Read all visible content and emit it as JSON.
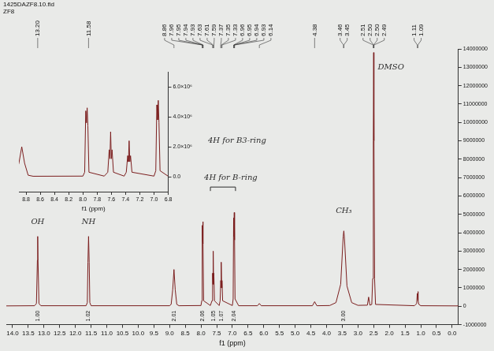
{
  "chart_data": [
    {
      "type": "line",
      "title": "1425DAZF8.10.fid",
      "subtitle": "ZF8",
      "x_label": "f1 (ppm)",
      "color": "#7b1e1e",
      "grid": false,
      "x": [
        14.2,
        13.3,
        13.24,
        13.21,
        13.2,
        13.19,
        13.16,
        13.1,
        11.66,
        11.62,
        11.6,
        11.58,
        11.56,
        11.54,
        11.5,
        9.0,
        8.95,
        8.9,
        8.86,
        8.82,
        8.77,
        8.7,
        8.0,
        7.975,
        7.96,
        7.95,
        7.94,
        7.93,
        7.915,
        7.7,
        7.65,
        7.63,
        7.62,
        7.61,
        7.6,
        7.59,
        7.57,
        7.42,
        7.39,
        7.37,
        7.36,
        7.35,
        7.34,
        7.33,
        7.31,
        7.0,
        6.975,
        6.96,
        6.95,
        6.94,
        6.93,
        6.915,
        6.8,
        6.2,
        6.14,
        6.08,
        4.45,
        4.38,
        4.31,
        3.9,
        3.7,
        3.55,
        3.47,
        3.45,
        3.43,
        3.35,
        3.2,
        3.0,
        2.7,
        2.66,
        2.62,
        2.56,
        2.53,
        2.51,
        2.5,
        2.49,
        2.47,
        2.44,
        1.2,
        1.13,
        1.11,
        1.1,
        1.09,
        1.08,
        1.06,
        1.0,
        -0.2
      ],
      "values": [
        20000,
        30000,
        150000,
        2500000,
        3800000,
        2500000,
        150000,
        30000,
        30000,
        200000,
        2400000,
        3800000,
        2400000,
        200000,
        30000,
        30000,
        100000,
        900000,
        2000000,
        900000,
        100000,
        30000,
        40000,
        300000,
        4400000,
        3600000,
        4600000,
        3400000,
        300000,
        40000,
        300000,
        1800000,
        1200000,
        3000000,
        1200000,
        1800000,
        300000,
        40000,
        300000,
        1400000,
        1000000,
        2400000,
        1000000,
        1400000,
        300000,
        40000,
        400000,
        4800000,
        3800000,
        5100000,
        3600000,
        400000,
        30000,
        30000,
        150000,
        30000,
        30000,
        250000,
        30000,
        40000,
        200000,
        1200000,
        3800000,
        4100000,
        3700000,
        1100000,
        200000,
        50000,
        60000,
        500000,
        60000,
        100000,
        1500000,
        9000000,
        13800000,
        9000000,
        1500000,
        100000,
        30000,
        150000,
        700000,
        400000,
        800000,
        300000,
        100000,
        30000,
        20000
      ],
      "xlim": [
        14.2,
        -0.2
      ],
      "xticks": [
        {
          "value": 14,
          "label": "14.0"
        },
        13.5,
        {
          "value": 13,
          "label": "13.0"
        },
        12.5,
        {
          "value": 12,
          "label": "12.0"
        },
        11.5,
        {
          "value": 11,
          "label": "11.0"
        },
        10.5,
        {
          "value": 10,
          "label": "10.0"
        },
        9.5,
        {
          "value": 9,
          "label": "9.0"
        },
        8.5,
        {
          "value": 8,
          "label": "8.0"
        },
        7.5,
        {
          "value": 7,
          "label": "7.0"
        },
        6.5,
        {
          "value": 6,
          "label": "6.0"
        },
        5.5,
        {
          "value": 5,
          "label": "5.0"
        },
        4.5,
        {
          "value": 4,
          "label": "4.0"
        },
        3.5,
        {
          "value": 3,
          "label": "3.0"
        },
        2.5,
        {
          "value": 2,
          "label": "2.0"
        },
        1.5,
        {
          "value": 1,
          "label": "1.0"
        },
        0.5,
        {
          "value": 0,
          "label": "0.0"
        }
      ],
      "ylim": [
        -1000000,
        14000000
      ],
      "yticks": [
        -1000000,
        0,
        1000000,
        2000000,
        3000000,
        4000000,
        5000000,
        6000000,
        7000000,
        8000000,
        9000000,
        10000000,
        11000000,
        12000000,
        13000000,
        14000000
      ],
      "peak_labels": [
        {
          "value": 13.2,
          "label": "13.20"
        },
        {
          "value": 11.58,
          "label": "11.58"
        },
        {
          "value": 8.86,
          "label": "8.86"
        },
        {
          "value": 7.96,
          "label": "7.96"
        },
        {
          "value": 7.95,
          "label": "7.95"
        },
        {
          "value": 7.94,
          "label": "7.94"
        },
        {
          "value": 7.93,
          "label": "7.93"
        },
        {
          "value": 7.63,
          "label": "7.63"
        },
        {
          "value": 7.61,
          "label": "7.61"
        },
        {
          "value": 7.59,
          "label": "7.59"
        },
        {
          "value": 7.37,
          "label": "7.37"
        },
        {
          "value": 7.35,
          "label": "7.35"
        },
        {
          "value": 7.33,
          "label": "7.33"
        },
        {
          "value": 6.96,
          "label": "6.96"
        },
        {
          "value": 6.95,
          "label": "6.95"
        },
        {
          "value": 6.94,
          "label": "6.94"
        },
        {
          "value": 6.93,
          "label": "6.93"
        },
        {
          "value": 6.14,
          "label": "6.14"
        },
        {
          "value": 4.38,
          "label": "4.38"
        },
        {
          "value": 3.46,
          "label": "3.46"
        },
        {
          "value": 3.45,
          "label": "3.45"
        },
        {
          "value": 2.51,
          "label": "2.51"
        },
        {
          "value": 2.5,
          "label": "2.50"
        },
        {
          "value": 2.5,
          "label": "2.50"
        },
        {
          "value": 2.49,
          "label": "2.49"
        },
        {
          "value": 1.11,
          "label": "1.11"
        },
        {
          "value": 1.09,
          "label": "1.09"
        }
      ],
      "integrals": [
        {
          "x": 13.2,
          "label": "1.00"
        },
        {
          "x": 11.58,
          "label": "1.02"
        },
        {
          "x": 8.86,
          "label": "2.01"
        },
        {
          "x": 7.95,
          "label": "2.06"
        },
        {
          "x": 7.61,
          "label": "1.05"
        },
        {
          "x": 7.35,
          "label": "1.07"
        },
        {
          "x": 6.95,
          "label": "2.04"
        },
        {
          "x": 3.45,
          "label": "3.00"
        }
      ],
      "annotations": [
        {
          "text": "OH",
          "x": 13.2,
          "y": 4600000
        },
        {
          "text": "NH",
          "x": 11.58,
          "y": 4600000
        },
        {
          "text": "4H for B3-ring",
          "x": 6.85,
          "y": 9000000
        },
        {
          "text": "4H for B-ring",
          "x": 7.05,
          "y": 7000000,
          "span": [
            7.7,
            6.9
          ]
        },
        {
          "text": "CH₃",
          "x": 3.45,
          "y": 5200000
        },
        {
          "text": "DMSO",
          "x": 1.95,
          "y": 13000000
        }
      ]
    },
    {
      "type": "line",
      "x_label": "f1 (ppm)",
      "color": "#7b1e1e",
      "grid": false,
      "x": [
        9.0,
        8.95,
        8.9,
        8.86,
        8.82,
        8.77,
        8.7,
        8.0,
        7.975,
        7.96,
        7.95,
        7.94,
        7.93,
        7.915,
        7.7,
        7.65,
        7.63,
        7.62,
        7.61,
        7.6,
        7.59,
        7.57,
        7.42,
        7.39,
        7.37,
        7.36,
        7.35,
        7.34,
        7.33,
        7.31,
        7.0,
        6.975,
        6.96,
        6.95,
        6.94,
        6.93,
        6.915,
        6.8
      ],
      "values": [
        30000,
        100000,
        900000,
        2000000,
        900000,
        100000,
        30000,
        40000,
        300000,
        4400000,
        3600000,
        4600000,
        3400000,
        300000,
        40000,
        300000,
        1800000,
        1200000,
        3000000,
        1200000,
        1800000,
        300000,
        40000,
        300000,
        1400000,
        1000000,
        2400000,
        1000000,
        1400000,
        300000,
        40000,
        400000,
        4800000,
        3800000,
        5100000,
        3600000,
        400000,
        30000
      ],
      "xlim": [
        8.9,
        6.8
      ],
      "xticks": [
        8.8,
        8.6,
        8.4,
        8.2,
        {
          "value": 8,
          "label": "8.0"
        },
        7.8,
        7.6,
        7.4,
        7.2,
        {
          "value": 7,
          "label": "7.0"
        },
        6.8
      ],
      "ylim": [
        -1000000,
        7000000
      ],
      "yticks": [
        {
          "value": 0,
          "label": "0.0"
        },
        {
          "value": 2000000,
          "label": "2.0×10⁶"
        },
        {
          "value": 4000000,
          "label": "4.0×10⁶"
        },
        {
          "value": 6000000,
          "label": "6.0×10⁶"
        }
      ]
    }
  ]
}
